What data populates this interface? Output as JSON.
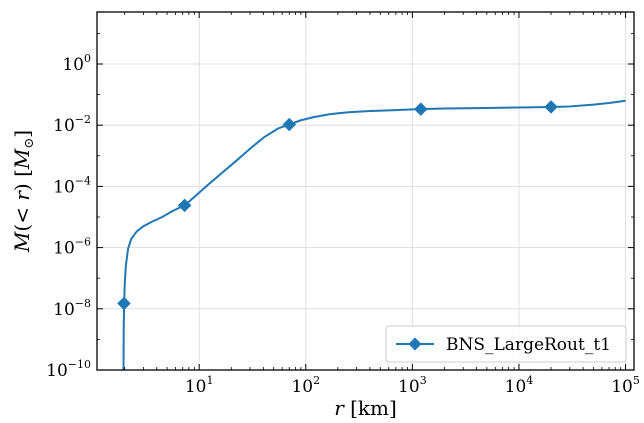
{
  "chart_data": {
    "type": "line",
    "x_scale": "log",
    "y_scale": "log",
    "xlim": [
      1.1,
      120000
    ],
    "ylim": [
      1e-10,
      50
    ],
    "grid": true,
    "legend_position": "lower-right",
    "xlabel": "r [km]",
    "ylabel": "M(< r) [M⊙]",
    "x_ticks": [
      {
        "value": 10,
        "base": "10",
        "exp": "1"
      },
      {
        "value": 100,
        "base": "10",
        "exp": "2"
      },
      {
        "value": 1000,
        "base": "10",
        "exp": "3"
      },
      {
        "value": 10000,
        "base": "10",
        "exp": "4"
      },
      {
        "value": 100000,
        "base": "10",
        "exp": "5"
      }
    ],
    "y_ticks": [
      {
        "value": 1e-10,
        "base": "10",
        "exp": "−10"
      },
      {
        "value": 1e-08,
        "base": "10",
        "exp": "−8"
      },
      {
        "value": 1e-06,
        "base": "10",
        "exp": "−6"
      },
      {
        "value": 0.0001,
        "base": "10",
        "exp": "−4"
      },
      {
        "value": 0.01,
        "base": "10",
        "exp": "−2"
      },
      {
        "value": 1,
        "base": "10",
        "exp": "0"
      }
    ],
    "series": [
      {
        "name": "BNS_LargeRout_t1",
        "color": "#1f77b4",
        "marker": "diamond",
        "x": [
          1.95,
          1.96,
          1.98,
          2.0,
          2.05,
          2.15,
          2.3,
          2.6,
          3.0,
          3.6,
          4.5,
          5.5,
          6.5,
          7.3,
          9,
          12,
          16,
          22,
          30,
          40,
          55,
          70,
          90,
          120,
          170,
          250,
          400,
          700,
          1000,
          1200,
          2000,
          5000,
          10000,
          20000,
          30000,
          50000,
          70000,
          100000
        ],
        "y": [
          1e-10,
          3e-09,
          1.5e-08,
          6e-08,
          2.5e-07,
          9e-07,
          1.9e-06,
          3.4e-06,
          5e-06,
          7e-06,
          1e-05,
          1.5e-05,
          2e-05,
          2.4e-05,
          4.5e-05,
          0.00011,
          0.00026,
          0.00066,
          0.0017,
          0.0039,
          0.0078,
          0.0105,
          0.0145,
          0.0185,
          0.023,
          0.0265,
          0.029,
          0.031,
          0.033,
          0.0335,
          0.035,
          0.0365,
          0.038,
          0.0395,
          0.041,
          0.047,
          0.053,
          0.063
        ],
        "markers_x": [
          1.97,
          7.3,
          70,
          1200,
          20000
        ],
        "markers_y": [
          1.5e-08,
          2.4e-05,
          0.0105,
          0.0335,
          0.0395
        ]
      }
    ]
  }
}
